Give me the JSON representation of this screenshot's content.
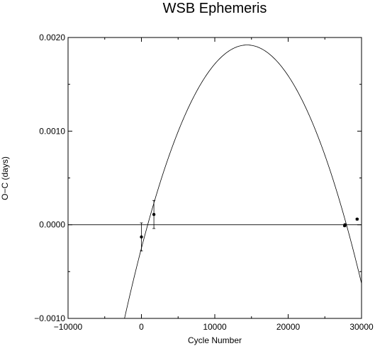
{
  "chart_data": {
    "type": "scatter",
    "title": "WSB Ephemeris",
    "xlabel": "Cycle Number",
    "ylabel": "O−C (days)",
    "xlim": [
      -10000,
      30000
    ],
    "ylim": [
      -0.001,
      0.002
    ],
    "x_ticks": [
      -10000,
      0,
      10000,
      20000,
      30000
    ],
    "x_tick_labels": [
      "−10000",
      "0",
      "10000",
      "20000",
      "30000"
    ],
    "y_ticks": [
      -0.001,
      0.0,
      0.001,
      0.002
    ],
    "y_tick_labels": [
      "−0.0010",
      "0.0000",
      "0.0010",
      "0.0020"
    ],
    "grid": false,
    "series": [
      {
        "type": "points",
        "points": [
          {
            "x": 0,
            "y": -0.00013,
            "err": 0.00015
          },
          {
            "x": 1700,
            "y": 0.00011,
            "err": 0.00015
          },
          {
            "x": 27700,
            "y": -1e-05,
            "err": 1e-05
          },
          {
            "x": 27750,
            "y": 0.0,
            "err": 1e-05
          },
          {
            "x": 29400,
            "y": 6e-05,
            "err": 1e-05
          }
        ]
      },
      {
        "type": "curve",
        "model": "parabola",
        "coefficients": {
          "peak_x": 14400,
          "peak_y": 0.00192,
          "y_at_0": -0.00025
        }
      },
      {
        "type": "line",
        "model": "constant",
        "y": 0.0
      }
    ]
  }
}
